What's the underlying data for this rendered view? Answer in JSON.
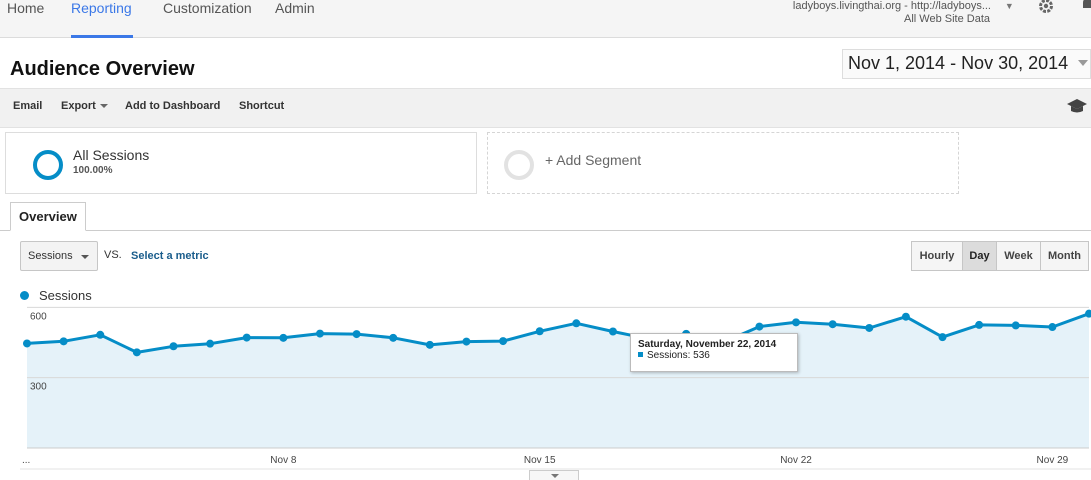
{
  "nav": {
    "tabs": [
      {
        "label": "Home"
      },
      {
        "label": "Reporting",
        "active": true
      },
      {
        "label": "Customization"
      },
      {
        "label": "Admin"
      }
    ],
    "property_line1": "ladyboys.livingthai.org - http://ladyboys...",
    "property_line2": "All Web Site Data",
    "settings_icon": "gear-icon",
    "notifications_icon": "bell-icon"
  },
  "header": {
    "title": "Audience Overview",
    "date_range": "Nov 1, 2014 - Nov 30, 2014"
  },
  "toolbar": {
    "email": "Email",
    "export": "Export",
    "add_to_dashboard": "Add to Dashboard",
    "shortcut": "Shortcut",
    "help_icon": "graduation-cap-icon"
  },
  "segments": {
    "all_sessions_label": "All Sessions",
    "all_sessions_pct": "100.00%",
    "add_segment": "+ Add Segment"
  },
  "tabs": {
    "overview": "Overview"
  },
  "metric": {
    "selected": "Sessions",
    "vs": "VS.",
    "select_metric": "Select a metric"
  },
  "granularity": [
    "Hourly",
    "Day",
    "Week",
    "Month"
  ],
  "granularity_active": "Day",
  "legend": {
    "series": "Sessions"
  },
  "tooltip": {
    "date": "Saturday, November 22, 2014",
    "text": "Sessions: 536"
  },
  "colors": {
    "accent": "#3b78e7",
    "series": "#058dc7",
    "area": "#e5f2f9"
  },
  "chart_data": {
    "type": "area",
    "x": [
      "Nov 1",
      "Nov 2",
      "Nov 3",
      "Nov 4",
      "Nov 5",
      "Nov 6",
      "Nov 7",
      "Nov 8",
      "Nov 9",
      "Nov 10",
      "Nov 11",
      "Nov 12",
      "Nov 13",
      "Nov 14",
      "Nov 15",
      "Nov 16",
      "Nov 17",
      "Nov 18",
      "Nov 19",
      "Nov 20",
      "Nov 21",
      "Nov 22",
      "Nov 23",
      "Nov 24",
      "Nov 25",
      "Nov 26",
      "Nov 27",
      "Nov 28",
      "Nov 29",
      "Nov 30"
    ],
    "series": [
      {
        "name": "Sessions",
        "values": [
          446,
          455,
          483,
          408,
          434,
          445,
          471,
          470,
          488,
          486,
          470,
          440,
          454,
          456,
          498,
          532,
          497,
          465,
          487,
          450,
          518,
          536,
          528,
          512,
          560,
          473,
          525,
          523,
          516,
          573
        ]
      }
    ],
    "xticks": [
      "...",
      "Nov 8",
      "Nov 15",
      "Nov 22",
      "Nov 29"
    ],
    "yticks": [
      300,
      600
    ],
    "ylim": [
      0,
      610
    ],
    "grid": true,
    "legend": "top-left"
  }
}
